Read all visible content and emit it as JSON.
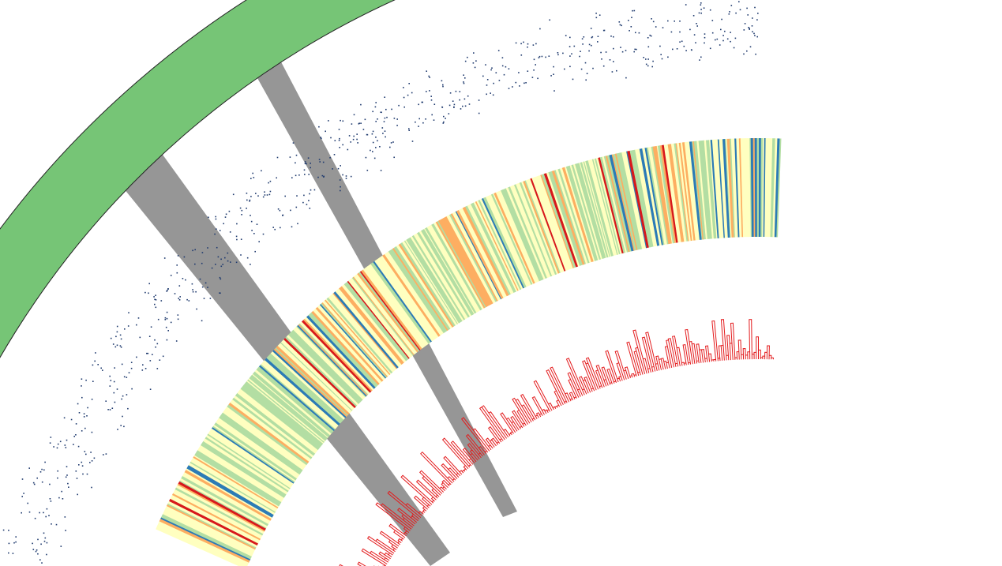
{
  "figure": {
    "type": "circos-plot-crop",
    "has_text": false
  },
  "colors": {
    "ideogram": "#76c576",
    "ideogram_stroke": "#222222",
    "link": "#969696",
    "scatter": "#1f3a6e",
    "histogram": "#e31a1c",
    "heatmap_scale": [
      "#ffffc0",
      "#b3dea3",
      "#fdae61",
      "#2c7bb6",
      "#d7191c"
    ]
  },
  "tracks": [
    {
      "name": "ideogram",
      "kind": "ideogram-band",
      "items": 1
    },
    {
      "name": "links",
      "kind": "ribbon",
      "items": 2
    },
    {
      "name": "scatter",
      "kind": "scatter",
      "points": 700
    },
    {
      "name": "heatmap",
      "kind": "heatmap",
      "cells": 420
    },
    {
      "name": "histogram",
      "kind": "histogram",
      "bins": 230
    }
  ]
}
